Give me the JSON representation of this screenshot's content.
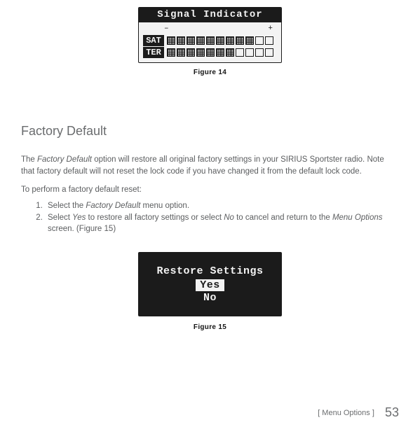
{
  "fig14": {
    "title": "Signal Indicator",
    "minus_label": "–",
    "plus_label": "+",
    "row1_label": "SAT",
    "row2_label": "TER",
    "caption": "Figure 14",
    "total_cells": 11,
    "sat_filled": 9,
    "ter_filled": 7,
    "colors": {
      "frame": "#1b1b1b",
      "panel": "#f3f3f3"
    }
  },
  "section": {
    "title": "Factory Default",
    "para1_a": "The ",
    "para1_b_ital": "Factory Default",
    "para1_c": " option will restore all original factory settings in your SIRIUS Sportster radio. Note that factory default will not reset the lock code if you have changed it from the default lock code.",
    "para2": "To perform a factory default reset:",
    "step1_a": "Select the ",
    "step1_b_ital": "Factory Default",
    "step1_c": " menu option.",
    "step2_a": "Select ",
    "step2_b_ital": "Yes",
    "step2_c": " to restore all factory settings or select ",
    "step2_d_ital": "No",
    "step2_e": " to cancel and return to the ",
    "step2_f_ital": "Menu Options",
    "step2_g": " screen. (Figure 15)"
  },
  "fig15": {
    "line1": "Restore Settings",
    "option_selected": "Yes",
    "option_other": "No",
    "caption": "Figure 15",
    "colors": {
      "bg": "#1b1b1b",
      "fg": "#f3f3f3"
    }
  },
  "footer": {
    "breadcrumb": "[ Menu Options ]",
    "page_number": "53"
  }
}
